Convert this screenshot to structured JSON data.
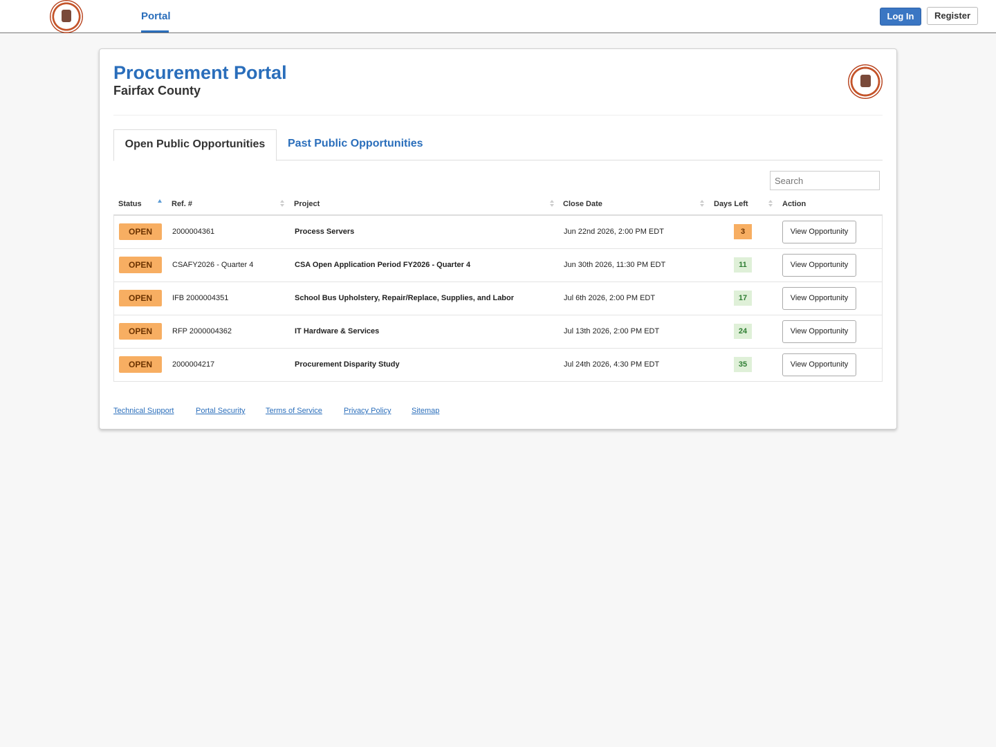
{
  "nav": {
    "portal": "Portal",
    "login": "Log In",
    "register": "Register"
  },
  "header": {
    "title": "Procurement Portal",
    "subtitle": "Fairfax County"
  },
  "tabs": [
    "Open Public Opportunities",
    "Past Public Opportunities"
  ],
  "search_placeholder": "Search",
  "table": {
    "columns": [
      "Status",
      "Ref. #",
      "Project",
      "Close Date",
      "Days Left",
      "Action"
    ],
    "rows": [
      [
        "OPEN",
        "2000004361",
        "Process Servers",
        "Jun 22nd 2026, 2:00 PM EDT",
        3,
        "View Opportunity"
      ],
      [
        "OPEN",
        "CSAFY2026 - Quarter 4",
        "CSA Open Application Period FY2026 - Quarter 4",
        "Jun 30th 2026, 11:30 PM EDT",
        11,
        "View Opportunity"
      ],
      [
        "OPEN",
        "IFB 2000004351",
        "School Bus Upholstery, Repair/Replace, Supplies, and Labor",
        "Jul 6th 2026, 2:00 PM EDT",
        17,
        "View Opportunity"
      ],
      [
        "OPEN",
        "RFP 2000004362",
        "IT Hardware & Services",
        "Jul 13th 2026, 2:00 PM EDT",
        24,
        "View Opportunity"
      ],
      [
        "OPEN",
        "2000004217",
        "Procurement Disparity Study",
        "Jul 24th 2026, 4:30 PM EDT",
        35,
        "View Opportunity"
      ]
    ],
    "days_left_colors": [
      "#f7ae62",
      "#dff0d8",
      "#dff0d8",
      "#dff0d8",
      "#dff0d8"
    ]
  },
  "footer_links": [
    "Technical Support",
    "Portal Security",
    "Terms of Service",
    "Privacy Policy",
    "Sitemap"
  ]
}
